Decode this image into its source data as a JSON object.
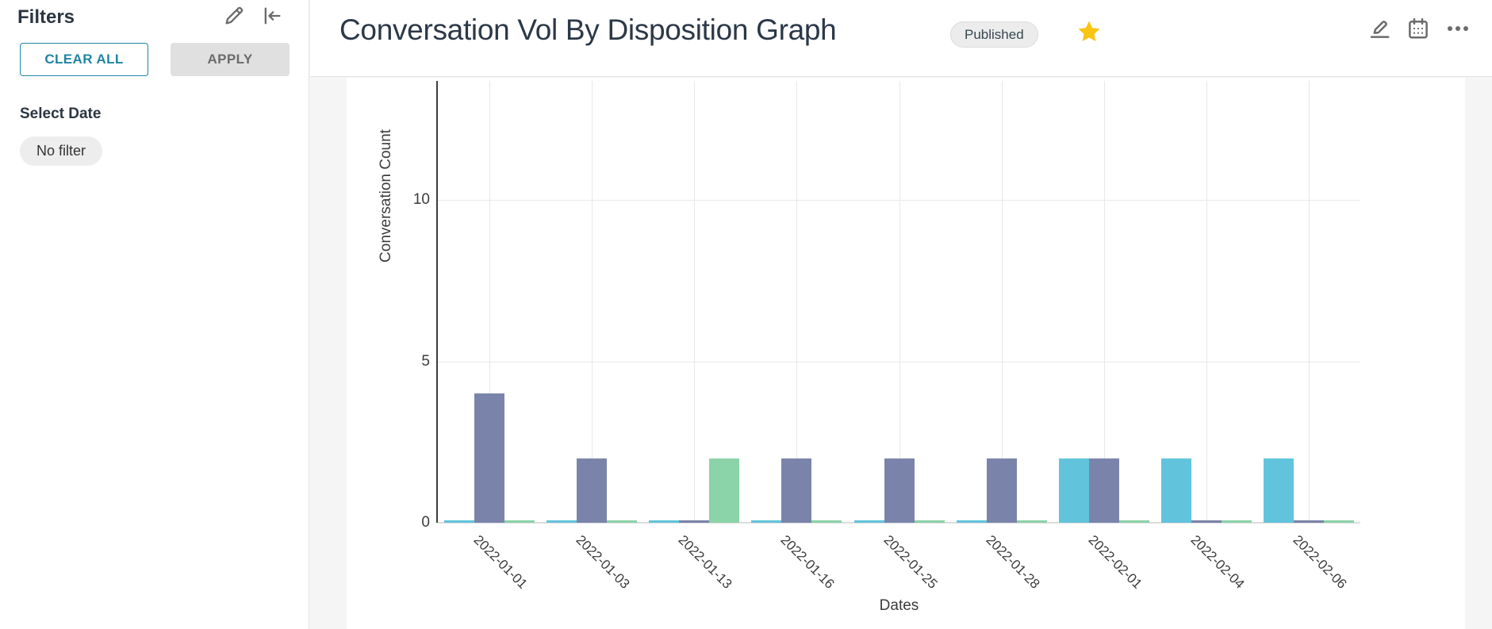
{
  "sidebar": {
    "title": "Filters",
    "clear_all_label": "CLEAR ALL",
    "apply_label": "APPLY",
    "select_date_label": "Select Date",
    "date_filter_value": "No filter",
    "icons": [
      "edit-icon",
      "collapse-left-icon"
    ],
    "accent_color": "#1f85a3"
  },
  "header": {
    "title": "Conversation Vol By Disposition Graph",
    "status_badge": "Published",
    "icons": [
      "favorite-star-icon",
      "edit-icon",
      "calendar-icon",
      "more-options-icon"
    ],
    "star_color": "#f9c513"
  },
  "chart_data": {
    "type": "bar",
    "title": "",
    "xlabel": "Dates",
    "ylabel": "Conversation Count",
    "categories": [
      "2022-01-01",
      "2022-01-03",
      "2022-01-13",
      "2022-01-16",
      "2022-01-25",
      "2022-01-28",
      "2022-02-01",
      "2022-02-04",
      "2022-02-06"
    ],
    "series": [
      {
        "name": "cyan",
        "color": "#55bfd9",
        "values": [
          0,
          0,
          0,
          0,
          0,
          0,
          2,
          2,
          2
        ]
      },
      {
        "name": "purple",
        "color": "#6f7aa3",
        "values": [
          4,
          2,
          0,
          2,
          2,
          2,
          2,
          0,
          0
        ]
      },
      {
        "name": "green",
        "color": "#81cfa1",
        "values": [
          0,
          0,
          2,
          0,
          0,
          0,
          0,
          0,
          0
        ]
      }
    ],
    "yticks": [
      0,
      5,
      10
    ],
    "ylim": [
      0,
      13.7
    ],
    "grid": true,
    "legend_position": "none",
    "xtick_rotation_deg": 45
  }
}
